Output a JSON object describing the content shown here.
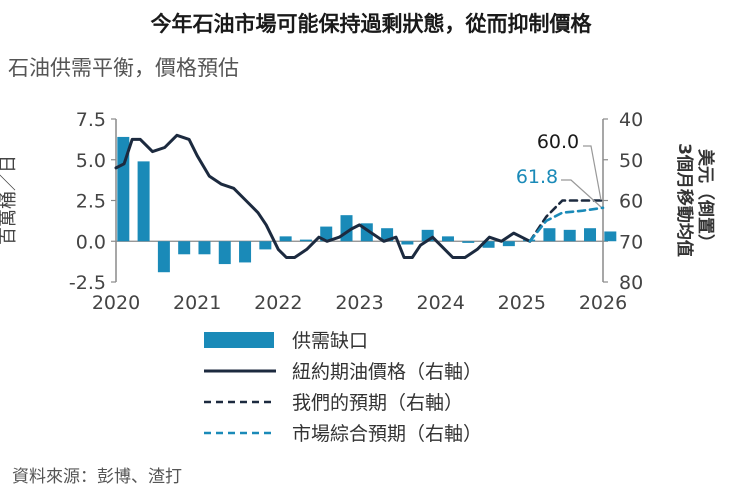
{
  "header": {
    "title": "今年石油市場可能保持過剩狀態，從而抑制價格",
    "subtitle": "石油供需平衡，價格預估"
  },
  "footer": {
    "source": "資料來源：彭博、渣打"
  },
  "colors": {
    "bar": "#1a8ab8",
    "oil_line": "#1c2a3f",
    "our_forecast": "#1c2a3f",
    "market_forecast": "#1a8ab8",
    "axis": "#8a8a8a"
  },
  "chart_data": {
    "type": "bar+line",
    "x_ticks": [
      "2020",
      "2021",
      "2022",
      "2023",
      "2024",
      "2025",
      "2026"
    ],
    "y_left": {
      "label": "百萬桶／日",
      "range": [
        -2.5,
        7.5
      ],
      "ticks": [
        "7.5",
        "5.0",
        "2.5",
        "0.0",
        "-2.5"
      ],
      "tick_values": [
        7.5,
        5.0,
        2.5,
        0.0,
        -2.5
      ]
    },
    "y_right": {
      "label": "3個月移動均值美元（倒置）",
      "range": [
        40,
        80
      ],
      "inverted": true,
      "ticks": [
        "40",
        "50",
        "60",
        "70",
        "80"
      ],
      "tick_values": [
        40,
        50,
        60,
        70,
        80
      ]
    },
    "bars": {
      "name": "供需缺口",
      "x": [
        2020.0,
        2020.25,
        2020.5,
        2020.75,
        2021.0,
        2021.25,
        2021.5,
        2021.75,
        2022.0,
        2022.25,
        2022.5,
        2022.75,
        2023.0,
        2023.25,
        2023.5,
        2023.75,
        2024.0,
        2024.25,
        2024.5,
        2024.75,
        2025.0,
        2025.25,
        2025.5,
        2025.75,
        2026.0
      ],
      "values": [
        6.4,
        4.9,
        -1.9,
        -0.8,
        -0.8,
        -1.4,
        -1.3,
        -0.5,
        0.3,
        0.1,
        0.9,
        1.6,
        1.1,
        0.8,
        -0.2,
        0.7,
        0.3,
        -0.1,
        -0.4,
        -0.3,
        0.1,
        0.8,
        0.7,
        0.8,
        0.6
      ]
    },
    "series": [
      {
        "name": "紐約期油價格（右軸）",
        "style": "solid",
        "x": [
          2020.0,
          2020.1,
          2020.2,
          2020.3,
          2020.45,
          2020.6,
          2020.75,
          2020.9,
          2021.0,
          2021.15,
          2021.3,
          2021.45,
          2021.6,
          2021.75,
          2021.85,
          2022.0,
          2022.1,
          2022.2,
          2022.35,
          2022.5,
          2022.6,
          2022.75,
          2022.9,
          2023.0,
          2023.15,
          2023.3,
          2023.45,
          2023.55,
          2023.65,
          2023.75,
          2023.9,
          2024.0,
          2024.15,
          2024.3,
          2024.45,
          2024.6,
          2024.75,
          2024.9,
          2025.0,
          2025.1
        ],
        "values": [
          52,
          51,
          45,
          45,
          48,
          47,
          44,
          45,
          49,
          54,
          56,
          57,
          60,
          63,
          66,
          72,
          74,
          74,
          72,
          69,
          70,
          69,
          67,
          66,
          68,
          70,
          69,
          74,
          74,
          71,
          69,
          71,
          74,
          74,
          72,
          69,
          70,
          68,
          69,
          70
        ]
      },
      {
        "name": "我們的預期（右軸）",
        "style": "dashed",
        "x": [
          2025.1,
          2025.3,
          2025.5,
          2025.75,
          2026.0
        ],
        "values": [
          70,
          64,
          60,
          60,
          60
        ]
      },
      {
        "name": "市場綜合預期（右軸）",
        "style": "dashed",
        "x": [
          2025.1,
          2025.3,
          2025.5,
          2025.75,
          2026.0
        ],
        "values": [
          70,
          65,
          63,
          62.5,
          61.8
        ]
      }
    ],
    "annotations": [
      {
        "text": "60.0",
        "x": 2026.0,
        "y": 60,
        "series": "our_forecast"
      },
      {
        "text": "61.8",
        "x": 2026.0,
        "y": 61.8,
        "series": "market_forecast"
      }
    ],
    "legend": {
      "placement": "bottom",
      "items": [
        "供需缺口",
        "紐約期油價格（右軸）",
        "我們的預期（右軸）",
        "市場綜合預期（右軸）"
      ]
    },
    "grid": false
  }
}
